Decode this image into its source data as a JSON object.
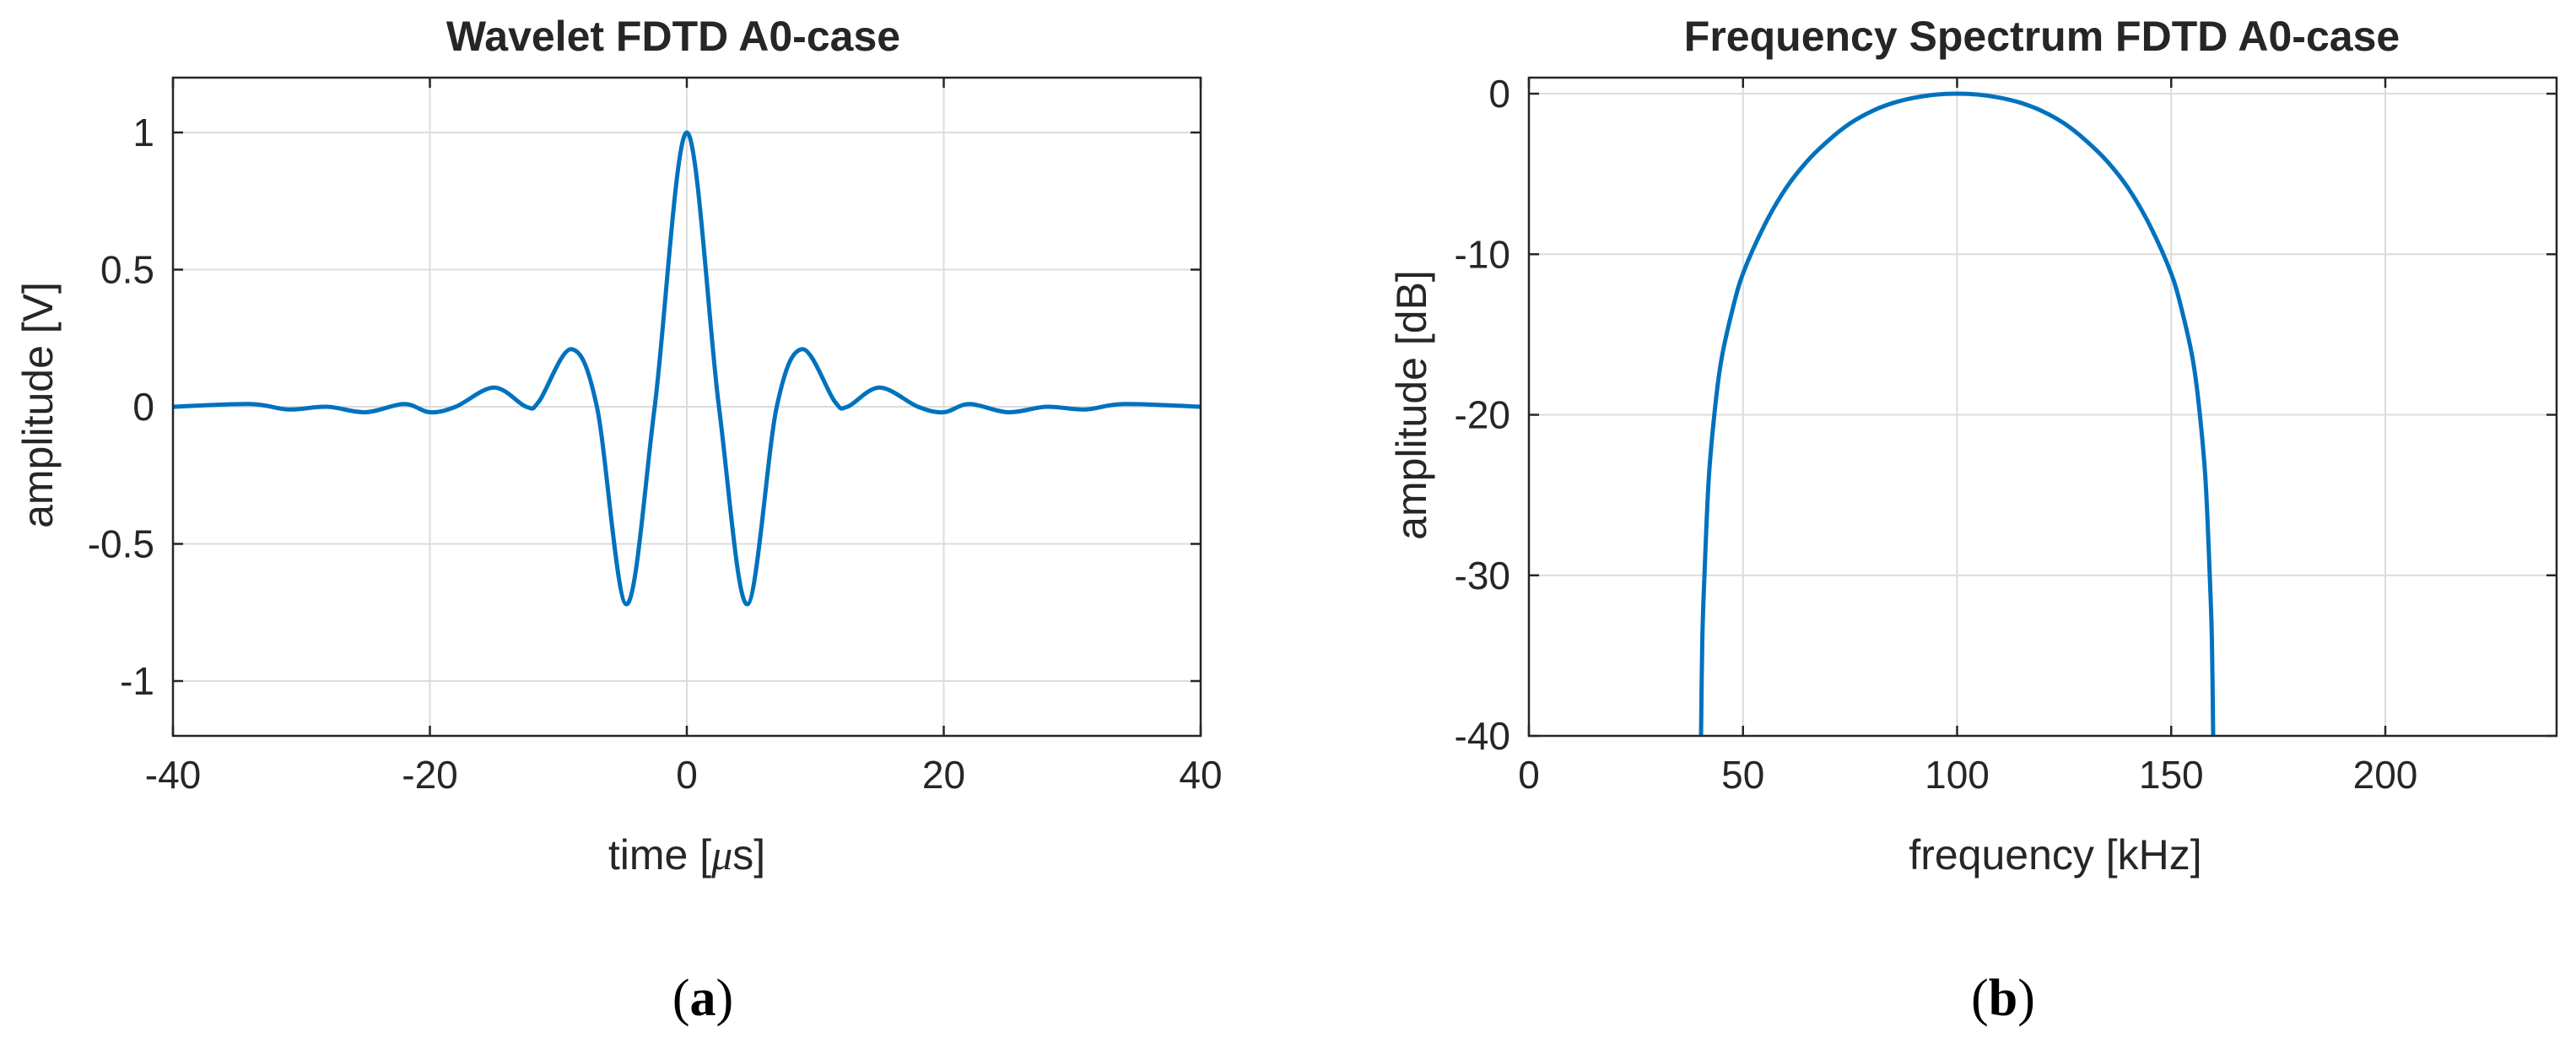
{
  "chart_data": [
    {
      "type": "line",
      "panel_label": "a",
      "title": "Wavelet FDTD A0-case",
      "xlabel": "time [",
      "xlabel_symbol": "μ",
      "xlabel_end": "s]",
      "ylabel": "amplitude [V]",
      "xlim": [
        -40,
        40
      ],
      "ylim": [
        -1.2,
        1.2
      ],
      "xticks": [
        -40,
        -20,
        0,
        20,
        40
      ],
      "yticks": [
        1,
        0.5,
        0,
        -0.5,
        -1
      ],
      "xtick_labels": [
        "-40",
        "-20",
        "0",
        "20",
        "40"
      ],
      "ytick_labels": [
        "1",
        "0.5",
        "0",
        "-0.5",
        "-1"
      ],
      "grid": true,
      "series_color": "#0072BD",
      "series": [
        {
          "x": [
            -40,
            -34,
            -31,
            -28,
            -25,
            -22,
            -20,
            -18,
            -15,
            -12.5,
            -11.5,
            -9,
            -7,
            -4.7,
            -2.5,
            0,
            2.5,
            4.7,
            7,
            9,
            11.5,
            12.5,
            15,
            18,
            20,
            22,
            25,
            28,
            31,
            34,
            40
          ],
          "y": [
            0.0,
            0.01,
            -0.01,
            0.0,
            -0.02,
            0.01,
            -0.02,
            0.0,
            0.07,
            0.0,
            0.02,
            0.21,
            0.0,
            -0.72,
            0.0,
            1.0,
            0.0,
            -0.72,
            0.0,
            0.21,
            0.02,
            0.0,
            0.07,
            0.0,
            -0.02,
            0.01,
            -0.02,
            0.0,
            -0.01,
            0.01,
            0.0
          ]
        }
      ]
    },
    {
      "type": "line",
      "panel_label": "b",
      "title": "Frequency Spectrum FDTD A0-case",
      "xlabel": "frequency [kHz]",
      "ylabel": "amplitude [dB]",
      "xlim": [
        0,
        240
      ],
      "ylim": [
        -40,
        1
      ],
      "xticks": [
        0,
        50,
        100,
        150,
        200
      ],
      "yticks": [
        0,
        -10,
        -20,
        -30,
        -40
      ],
      "xtick_labels": [
        "0",
        "50",
        "100",
        "150",
        "200"
      ],
      "ytick_labels": [
        "0",
        "-10",
        "-20",
        "-30",
        "-40"
      ],
      "grid": true,
      "series_color": "#0072BD",
      "series": [
        {
          "x": [
            40.2,
            40.5,
            41,
            42,
            43.5,
            45,
            47.5,
            50,
            55,
            60,
            65,
            70,
            75,
            80,
            85,
            90,
            95,
            100,
            105,
            110,
            115,
            120,
            125,
            130,
            135,
            140,
            145,
            150,
            152.5,
            155,
            156.5,
            158,
            159,
            159.5,
            159.8
          ],
          "y": [
            -40,
            -34,
            -30,
            -24,
            -19.5,
            -16.5,
            -13.5,
            -11.2,
            -8.2,
            -5.9,
            -4.2,
            -2.9,
            -1.85,
            -1.1,
            -0.58,
            -0.25,
            -0.06,
            0,
            -0.06,
            -0.25,
            -0.58,
            -1.1,
            -1.85,
            -2.9,
            -4.2,
            -5.9,
            -8.2,
            -11.2,
            -13.5,
            -16.5,
            -19.5,
            -24,
            -30,
            -34,
            -40
          ]
        }
      ]
    }
  ]
}
